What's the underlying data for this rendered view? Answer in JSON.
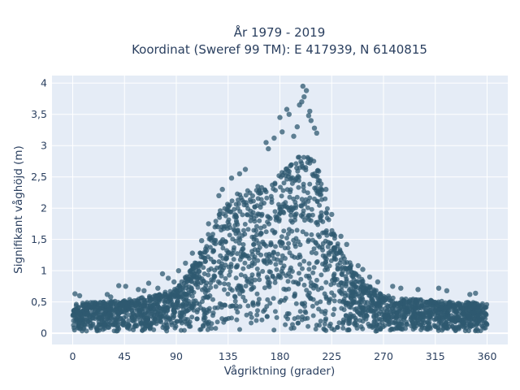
{
  "chart_data": {
    "type": "scatter",
    "title_line1": "År 1979 - 2019",
    "title_line2": "Koordinat (Sweref 99 TM): E 417939, N 6140815",
    "xlabel": "Vågriktning (grader)",
    "ylabel": "Signifikant våghöjd (m)",
    "xlim": [
      -18,
      378
    ],
    "ylim": [
      -0.18,
      4.12
    ],
    "x_ticks": [
      0,
      45,
      90,
      135,
      180,
      225,
      270,
      315,
      360
    ],
    "x_tick_labels": [
      "0",
      "45",
      "90",
      "135",
      "180",
      "225",
      "270",
      "315",
      "360"
    ],
    "y_ticks": [
      0,
      0.5,
      1,
      1.5,
      2,
      2.5,
      3,
      3.5,
      4
    ],
    "y_tick_labels": [
      "0",
      "0,5",
      "1",
      "1,5",
      "2",
      "2,5",
      "3",
      "3,5",
      "4"
    ],
    "grid": true,
    "legend": "none",
    "marker_color": "#2f5a70",
    "background_color": "#e5ecf6",
    "envelope": {
      "description_points_x": [
        0,
        20,
        45,
        70,
        90,
        100,
        110,
        120,
        130,
        140,
        150,
        160,
        170,
        180,
        190,
        200,
        210,
        215,
        220,
        225,
        230,
        240,
        250,
        260,
        270,
        285,
        300,
        315,
        330,
        345,
        360
      ],
      "upper_y": [
        0.48,
        0.5,
        0.53,
        0.6,
        0.72,
        0.95,
        1.3,
        1.7,
        2.05,
        2.2,
        2.3,
        2.35,
        2.4,
        2.55,
        2.7,
        2.9,
        2.8,
        2.6,
        2.1,
        1.7,
        1.45,
        1.15,
        0.9,
        0.72,
        0.62,
        0.55,
        0.55,
        0.52,
        0.5,
        0.5,
        0.48
      ]
    },
    "outliers": [
      {
        "x": 200,
        "y": 3.95
      },
      {
        "x": 203,
        "y": 3.88
      },
      {
        "x": 201,
        "y": 3.78
      },
      {
        "x": 199,
        "y": 3.7
      },
      {
        "x": 197,
        "y": 3.65
      },
      {
        "x": 186,
        "y": 3.58
      },
      {
        "x": 188,
        "y": 3.5
      },
      {
        "x": 180,
        "y": 3.45
      },
      {
        "x": 182,
        "y": 3.22
      },
      {
        "x": 175,
        "y": 3.12
      },
      {
        "x": 168,
        "y": 3.05
      },
      {
        "x": 170,
        "y": 2.95
      },
      {
        "x": 206,
        "y": 3.55
      },
      {
        "x": 205,
        "y": 3.48
      },
      {
        "x": 207,
        "y": 3.4
      },
      {
        "x": 210,
        "y": 3.28
      },
      {
        "x": 212,
        "y": 3.2
      },
      {
        "x": 195,
        "y": 3.3
      },
      {
        "x": 192,
        "y": 3.15
      },
      {
        "x": 150,
        "y": 2.62
      },
      {
        "x": 145,
        "y": 2.55
      },
      {
        "x": 138,
        "y": 2.48
      },
      {
        "x": 130,
        "y": 2.3
      },
      {
        "x": 127,
        "y": 2.2
      },
      {
        "x": 220,
        "y": 2.3
      },
      {
        "x": 225,
        "y": 1.9
      },
      {
        "x": 233,
        "y": 1.55
      },
      {
        "x": 238,
        "y": 1.42
      },
      {
        "x": 248,
        "y": 1.08
      },
      {
        "x": 252,
        "y": 1.02
      },
      {
        "x": 258,
        "y": 0.9
      },
      {
        "x": 265,
        "y": 0.82
      },
      {
        "x": 278,
        "y": 0.75
      },
      {
        "x": 285,
        "y": 0.72
      },
      {
        "x": 300,
        "y": 0.7
      },
      {
        "x": 318,
        "y": 0.72
      },
      {
        "x": 325,
        "y": 0.68
      },
      {
        "x": 345,
        "y": 0.62
      },
      {
        "x": 350,
        "y": 0.64
      },
      {
        "x": 2,
        "y": 0.63
      },
      {
        "x": 6,
        "y": 0.6
      },
      {
        "x": 30,
        "y": 0.62
      },
      {
        "x": 33,
        "y": 0.58
      },
      {
        "x": 40,
        "y": 0.76
      },
      {
        "x": 46,
        "y": 0.75
      },
      {
        "x": 57,
        "y": 0.7
      },
      {
        "x": 62,
        "y": 0.68
      },
      {
        "x": 66,
        "y": 0.8
      },
      {
        "x": 74,
        "y": 0.72
      },
      {
        "x": 78,
        "y": 0.95
      },
      {
        "x": 83,
        "y": 0.88
      },
      {
        "x": 88,
        "y": 0.82
      },
      {
        "x": 92,
        "y": 1.0
      },
      {
        "x": 98,
        "y": 1.12
      },
      {
        "x": 104,
        "y": 1.28
      },
      {
        "x": 112,
        "y": 1.48
      },
      {
        "x": 118,
        "y": 1.75
      }
    ]
  }
}
